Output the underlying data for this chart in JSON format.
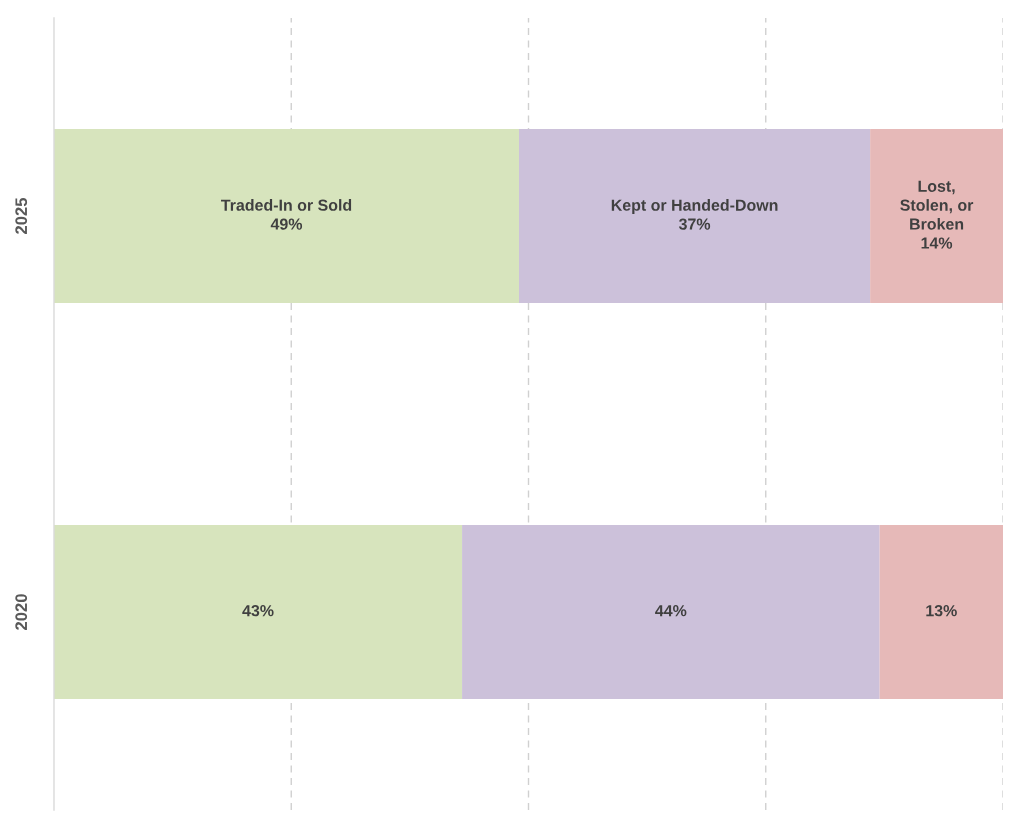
{
  "chart_data": {
    "type": "bar",
    "orientation": "horizontal",
    "stacked": true,
    "categories": [
      "2025",
      "2020"
    ],
    "series": [
      {
        "name": "Traded-In or Sold",
        "color": "#d7e4bd",
        "values": [
          49,
          43
        ],
        "value_labels": [
          "49%",
          "43%"
        ]
      },
      {
        "name": "Kept or Handed-Down",
        "color": "#ccc1da",
        "values": [
          37,
          44
        ],
        "value_labels": [
          "37%",
          "44%"
        ]
      },
      {
        "name": "Lost, Stolen, or Broken",
        "color": "#e6b9b8",
        "values": [
          14,
          13
        ],
        "value_labels": [
          "14%",
          "13%"
        ]
      }
    ],
    "xlim": [
      0,
      100
    ],
    "xticks": [
      {
        "value": 25,
        "label": null
      },
      {
        "value": 50,
        "label": null
      },
      {
        "value": 75,
        "label": null
      },
      {
        "value": 100,
        "label": null
      }
    ],
    "grid": "x",
    "tick_labels": "y"
  }
}
